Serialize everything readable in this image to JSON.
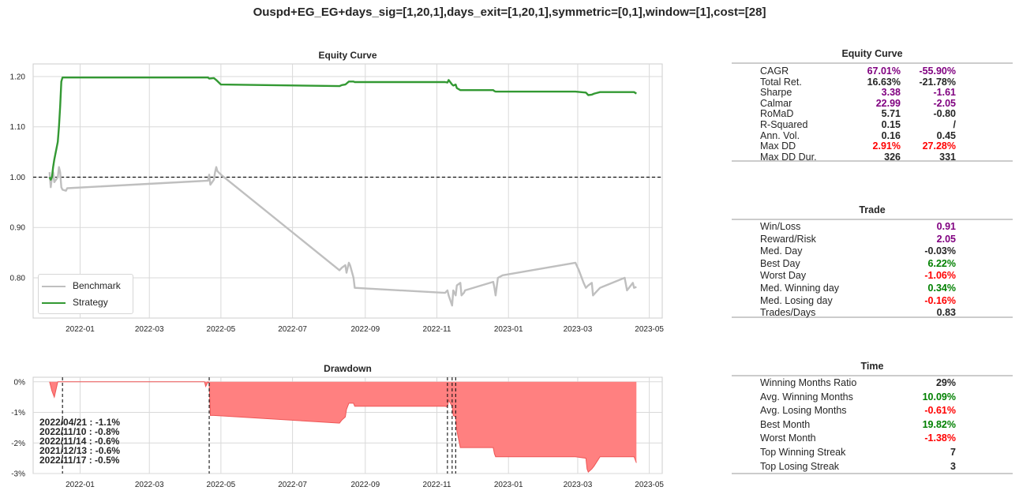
{
  "suptitle": "Ouspd+EG_EG+days_sig=[1,20,1],days_exit=[1,20,1],symmetric=[0,1],window=[1],cost=[28]",
  "colors": {
    "benchmark": "#bfbfbf",
    "strategy": "#339933",
    "drawdown_fill": "#ff8080",
    "drawdown_line": "#ee5555",
    "purple": "#800080",
    "red": "#ff0000",
    "green": "#008000",
    "dark": "#262626"
  },
  "chart_data": [
    {
      "type": "line",
      "title": "Equity Curve",
      "xlabel": "",
      "ylabel": "",
      "x_ticks": [
        "2022-01",
        "2022-03",
        "2022-05",
        "2022-07",
        "2022-09",
        "2022-11",
        "2023-01",
        "2023-03",
        "2023-05"
      ],
      "y_ticks": [
        "0.80",
        "0.90",
        "1.00",
        "1.10",
        "1.20"
      ],
      "ylim": [
        0.72,
        1.225
      ],
      "xlim": [
        "2021-11-22",
        "2023-05-12"
      ],
      "grid": true,
      "legend_position": "lower-left",
      "reference_line": 1.0,
      "series": [
        {
          "name": "Benchmark",
          "x": [
            "2021-12-06",
            "2021-12-07",
            "2021-12-08",
            "2021-12-09",
            "2021-12-10",
            "2021-12-13",
            "2021-12-14",
            "2021-12-15",
            "2021-12-16",
            "2021-12-17",
            "2021-12-20",
            "2021-12-21",
            "2022-04-20",
            "2022-04-21",
            "2022-04-22",
            "2022-04-25",
            "2022-04-26",
            "2022-04-27",
            "2022-04-28",
            "2022-05-01",
            "2022-08-10",
            "2022-08-12",
            "2022-08-15",
            "2022-08-16",
            "2022-08-18",
            "2022-08-19",
            "2022-08-22",
            "2022-08-23",
            "2022-11-08",
            "2022-11-10",
            "2022-11-11",
            "2022-11-14",
            "2022-11-15",
            "2022-11-17",
            "2022-11-18",
            "2022-11-21",
            "2022-11-22",
            "2022-11-24",
            "2022-11-25",
            "2022-12-19",
            "2022-12-20",
            "2022-12-21",
            "2022-12-23",
            "2022-12-27",
            "2023-02-27",
            "2023-03-02",
            "2023-03-06",
            "2023-03-08",
            "2023-03-10",
            "2023-03-13",
            "2023-03-14",
            "2023-03-16",
            "2023-03-20",
            "2023-04-10",
            "2023-04-12",
            "2023-04-17",
            "2023-04-18",
            "2023-04-20"
          ],
          "y": [
            1.01,
            0.98,
            1.0,
            1.01,
            0.99,
            1.0,
            1.02,
            1.01,
            0.98,
            0.975,
            0.973,
            0.978,
            0.993,
            1.005,
            0.985,
            0.995,
            1.01,
            1.02,
            1.012,
            1.005,
            0.815,
            0.82,
            0.825,
            0.81,
            0.83,
            0.825,
            0.8,
            0.78,
            0.77,
            0.775,
            0.765,
            0.745,
            0.775,
            0.765,
            0.785,
            0.79,
            0.765,
            0.77,
            0.775,
            0.792,
            0.78,
            0.765,
            0.8,
            0.805,
            0.83,
            0.815,
            0.79,
            0.78,
            0.785,
            0.79,
            0.765,
            0.77,
            0.78,
            0.8,
            0.775,
            0.79,
            0.78,
            0.782
          ]
        },
        {
          "name": "Strategy",
          "x": [
            "2021-12-06",
            "2021-12-07",
            "2021-12-08",
            "2021-12-09",
            "2021-12-10",
            "2021-12-13",
            "2021-12-14",
            "2021-12-15",
            "2021-12-16",
            "2021-12-17",
            "2021-12-20",
            "2021-12-21",
            "2022-04-20",
            "2022-04-21",
            "2022-04-25",
            "2022-04-27",
            "2022-05-01",
            "2022-08-10",
            "2022-08-12",
            "2022-08-15",
            "2022-08-16",
            "2022-08-18",
            "2022-08-22",
            "2022-08-23",
            "2022-11-08",
            "2022-11-10",
            "2022-11-11",
            "2022-11-14",
            "2022-11-15",
            "2022-11-17",
            "2022-11-18",
            "2022-11-21",
            "2022-11-28",
            "2022-12-19",
            "2022-12-20",
            "2022-12-21",
            "2023-02-27",
            "2023-03-08",
            "2023-03-10",
            "2023-03-13",
            "2023-03-15",
            "2023-03-20",
            "2023-04-17",
            "2023-04-18",
            "2023-04-20"
          ],
          "y": [
            1.0,
            0.995,
            1.0,
            1.02,
            1.035,
            1.07,
            1.1,
            1.14,
            1.19,
            1.198,
            1.198,
            1.198,
            1.198,
            1.196,
            1.197,
            1.193,
            1.184,
            1.181,
            1.183,
            1.184,
            1.186,
            1.19,
            1.19,
            1.189,
            1.189,
            1.188,
            1.193,
            1.184,
            1.182,
            1.184,
            1.177,
            1.173,
            1.173,
            1.173,
            1.171,
            1.17,
            1.17,
            1.168,
            1.163,
            1.164,
            1.166,
            1.169,
            1.169,
            1.169,
            1.166
          ]
        }
      ]
    },
    {
      "type": "area",
      "title": "Drawdown",
      "xlabel": "",
      "ylabel": "",
      "x_ticks": [
        "2022-01",
        "2022-03",
        "2022-05",
        "2022-07",
        "2022-09",
        "2022-11",
        "2023-01",
        "2023-03",
        "2023-05"
      ],
      "y_ticks": [
        "0%",
        "-1%",
        "-2%",
        "-3%"
      ],
      "ylim": [
        -3.0,
        0.15
      ],
      "xlim": [
        "2021-11-22",
        "2023-05-12"
      ],
      "grid": true,
      "x": [
        "2021-12-06",
        "2021-12-08",
        "2021-12-10",
        "2021-12-13",
        "2021-12-15",
        "2021-12-20",
        "2022-04-17",
        "2022-04-18",
        "2022-04-20",
        "2022-04-21",
        "2022-04-22",
        "2022-04-25",
        "2022-08-10",
        "2022-08-12",
        "2022-08-15",
        "2022-08-16",
        "2022-08-18",
        "2022-08-22",
        "2022-08-23",
        "2022-11-08",
        "2022-11-10",
        "2022-11-11",
        "2022-11-14",
        "2022-11-15",
        "2022-11-17",
        "2022-11-18",
        "2022-11-21",
        "2022-12-19",
        "2022-12-20",
        "2022-12-21",
        "2023-02-27",
        "2023-03-08",
        "2023-03-09",
        "2023-03-10",
        "2023-03-13",
        "2023-03-15",
        "2023-03-20",
        "2023-04-17",
        "2023-04-18",
        "2023-04-20"
      ],
      "y": [
        0,
        -0.3,
        -0.5,
        0,
        0,
        0,
        0,
        -0.15,
        0,
        -0.05,
        -1.1,
        -1.1,
        -1.35,
        -1.25,
        -1.15,
        -0.9,
        -0.7,
        -0.7,
        -0.8,
        -0.8,
        -0.82,
        -0.6,
        -0.8,
        -1.1,
        -1.15,
        -1.6,
        -2.15,
        -2.15,
        -2.35,
        -2.45,
        -2.45,
        -2.5,
        -2.85,
        -2.95,
        -2.85,
        -2.75,
        -2.45,
        -2.45,
        -2.45,
        -2.65
      ],
      "drawdown_dates": [
        "2021-12-17",
        "2022-04-21",
        "2022-11-10",
        "2022-11-14",
        "2022-11-17"
      ],
      "annotations": [
        "2022/04/21 : -1.1%",
        "2022/11/10 : -0.8%",
        "2022/11/14 : -0.6%",
        "2021/12/13 : -0.6%",
        "2022/11/17 : -0.5%"
      ]
    }
  ],
  "tables": {
    "equity": {
      "title": "Equity Curve",
      "rows": [
        {
          "label": "CAGR",
          "v1": "67.01%",
          "v2": "-55.90%",
          "c1": "purple",
          "c2": "purple"
        },
        {
          "label": "Total Ret.",
          "v1": "16.63%",
          "v2": "-21.78%",
          "c1": "dark",
          "c2": "dark"
        },
        {
          "label": "Sharpe",
          "v1": "3.38",
          "v2": "-1.61",
          "c1": "purple",
          "c2": "purple"
        },
        {
          "label": "Calmar",
          "v1": "22.99",
          "v2": "-2.05",
          "c1": "purple",
          "c2": "purple"
        },
        {
          "label": "RoMaD",
          "v1": "5.71",
          "v2": "-0.80",
          "c1": "dark",
          "c2": "dark"
        },
        {
          "label": "R-Squared",
          "v1": "0.15",
          "v2": "/",
          "c1": "dark",
          "c2": "dark"
        },
        {
          "label": "Ann. Vol.",
          "v1": "0.16",
          "v2": "0.45",
          "c1": "dark",
          "c2": "dark"
        },
        {
          "label": "Max DD",
          "v1": "2.91%",
          "v2": "27.28%",
          "c1": "red",
          "c2": "red"
        },
        {
          "label": "Max DD Dur.",
          "v1": "326",
          "v2": "331",
          "c1": "dark",
          "c2": "dark"
        }
      ]
    },
    "trade": {
      "title": "Trade",
      "rows": [
        {
          "label": "Win/Loss",
          "v": "0.91",
          "c": "purple"
        },
        {
          "label": "Reward/Risk",
          "v": "2.05",
          "c": "purple"
        },
        {
          "label": "Med. Day",
          "v": "-0.03%",
          "c": "dark"
        },
        {
          "label": "Best Day",
          "v": "6.22%",
          "c": "green"
        },
        {
          "label": "Worst Day",
          "v": "-1.06%",
          "c": "red"
        },
        {
          "label": "Med. Winning day",
          "v": "0.34%",
          "c": "green"
        },
        {
          "label": "Med. Losing day",
          "v": "-0.16%",
          "c": "red"
        },
        {
          "label": "Trades/Days",
          "v": "0.83",
          "c": "dark"
        }
      ]
    },
    "time": {
      "title": "Time",
      "rows": [
        {
          "label": "Winning Months Ratio",
          "v": "29%",
          "c": "dark"
        },
        {
          "label": "Avg. Winning Months",
          "v": "10.09%",
          "c": "green"
        },
        {
          "label": "Avg. Losing Months",
          "v": "-0.61%",
          "c": "red"
        },
        {
          "label": "Best Month",
          "v": "19.82%",
          "c": "green"
        },
        {
          "label": "Worst Month",
          "v": "-1.38%",
          "c": "red"
        },
        {
          "label": "Top Winning Streak",
          "v": "7",
          "c": "dark"
        },
        {
          "label": "Top Losing Streak",
          "v": "3",
          "c": "dark"
        }
      ]
    }
  }
}
